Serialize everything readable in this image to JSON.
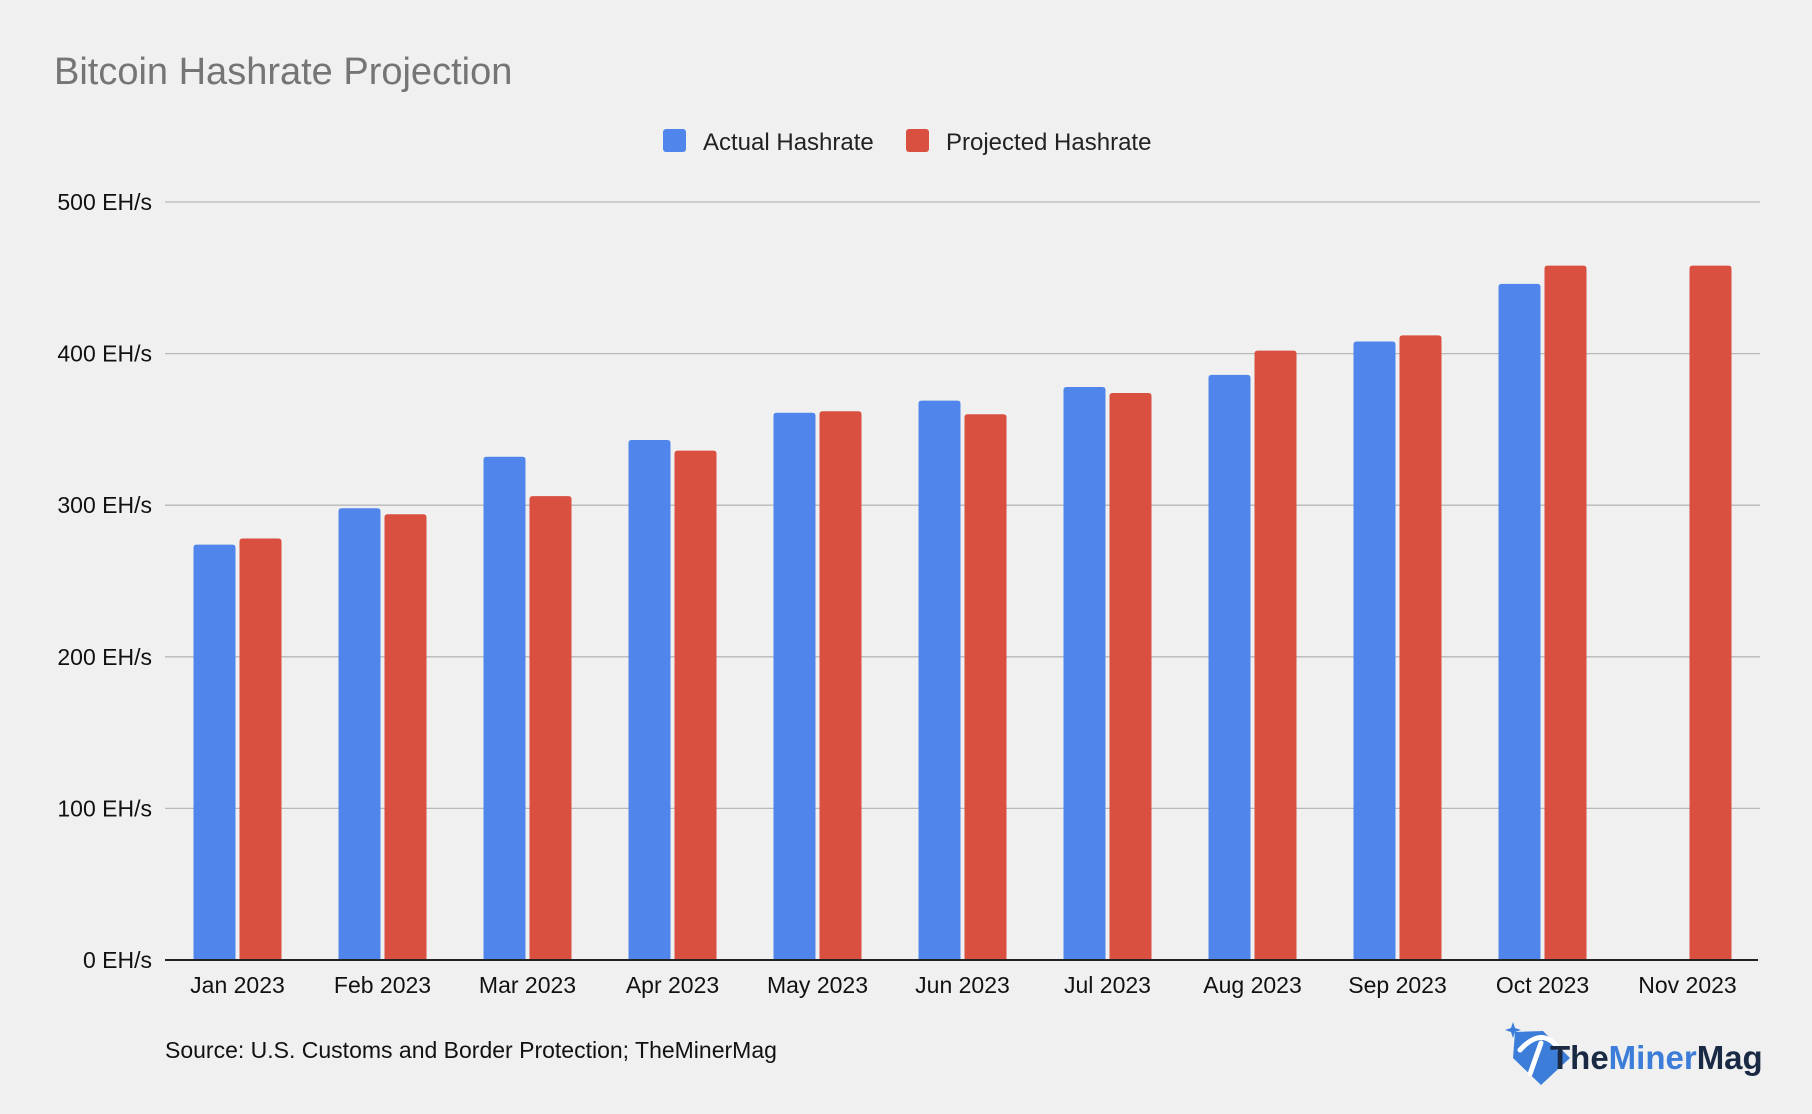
{
  "chart_data": {
    "type": "bar",
    "title": "Bitcoin Hashrate Projection",
    "categories": [
      "Jan 2023",
      "Feb 2023",
      "Mar 2023",
      "Apr 2023",
      "May 2023",
      "Jun 2023",
      "Jul 2023",
      "Aug 2023",
      "Sep 2023",
      "Oct 2023",
      "Nov 2023"
    ],
    "series": [
      {
        "name": "Actual Hashrate",
        "color": "#5086ec",
        "values": [
          274,
          298,
          332,
          343,
          361,
          369,
          378,
          386,
          408,
          446,
          null
        ]
      },
      {
        "name": "Projected Hashrate",
        "color": "#d95040",
        "values": [
          278,
          294,
          306,
          336,
          362,
          360,
          374,
          402,
          412,
          458,
          458
        ]
      }
    ],
    "ylim": [
      0,
      500
    ],
    "yticks": [
      0,
      100,
      200,
      300,
      400,
      500
    ],
    "ytick_labels": [
      "0 EH/s",
      "100 EH/s",
      "200 EH/s",
      "300 EH/s",
      "400 EH/s",
      "500 EH/s"
    ],
    "grid": true,
    "legend_position": "top-center",
    "xlabel": "",
    "ylabel": ""
  },
  "source": "Source: U.S. Customs and Border Protection; TheMinerMag",
  "logo": {
    "icon": "pickaxe-diamond-icon",
    "text": "TheMinerMag",
    "part1": "The",
    "part2": "Miner",
    "part3": "Mag",
    "color_dark": "#1a2a44",
    "color_accent": "#3b7dd8"
  }
}
